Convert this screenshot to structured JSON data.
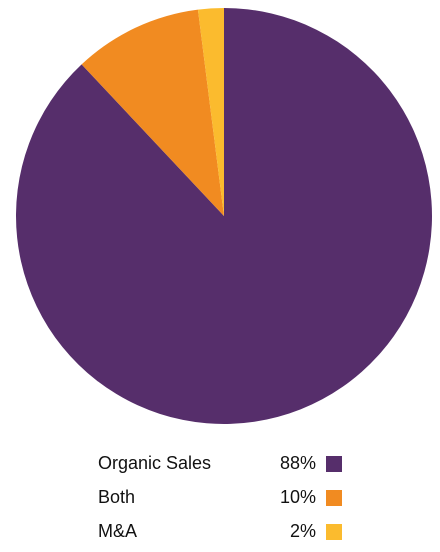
{
  "chart_data": {
    "type": "pie",
    "slices": [
      {
        "label": "Organic Sales",
        "value_label": "88%",
        "value": 88,
        "color": "#562e6b"
      },
      {
        "label": "Both",
        "value_label": "10%",
        "value": 10,
        "color": "#f18b21"
      },
      {
        "label": "M&A",
        "value_label": "2%",
        "value": 2,
        "color": "#fbbb2e"
      }
    ],
    "legend_position": "bottom"
  }
}
